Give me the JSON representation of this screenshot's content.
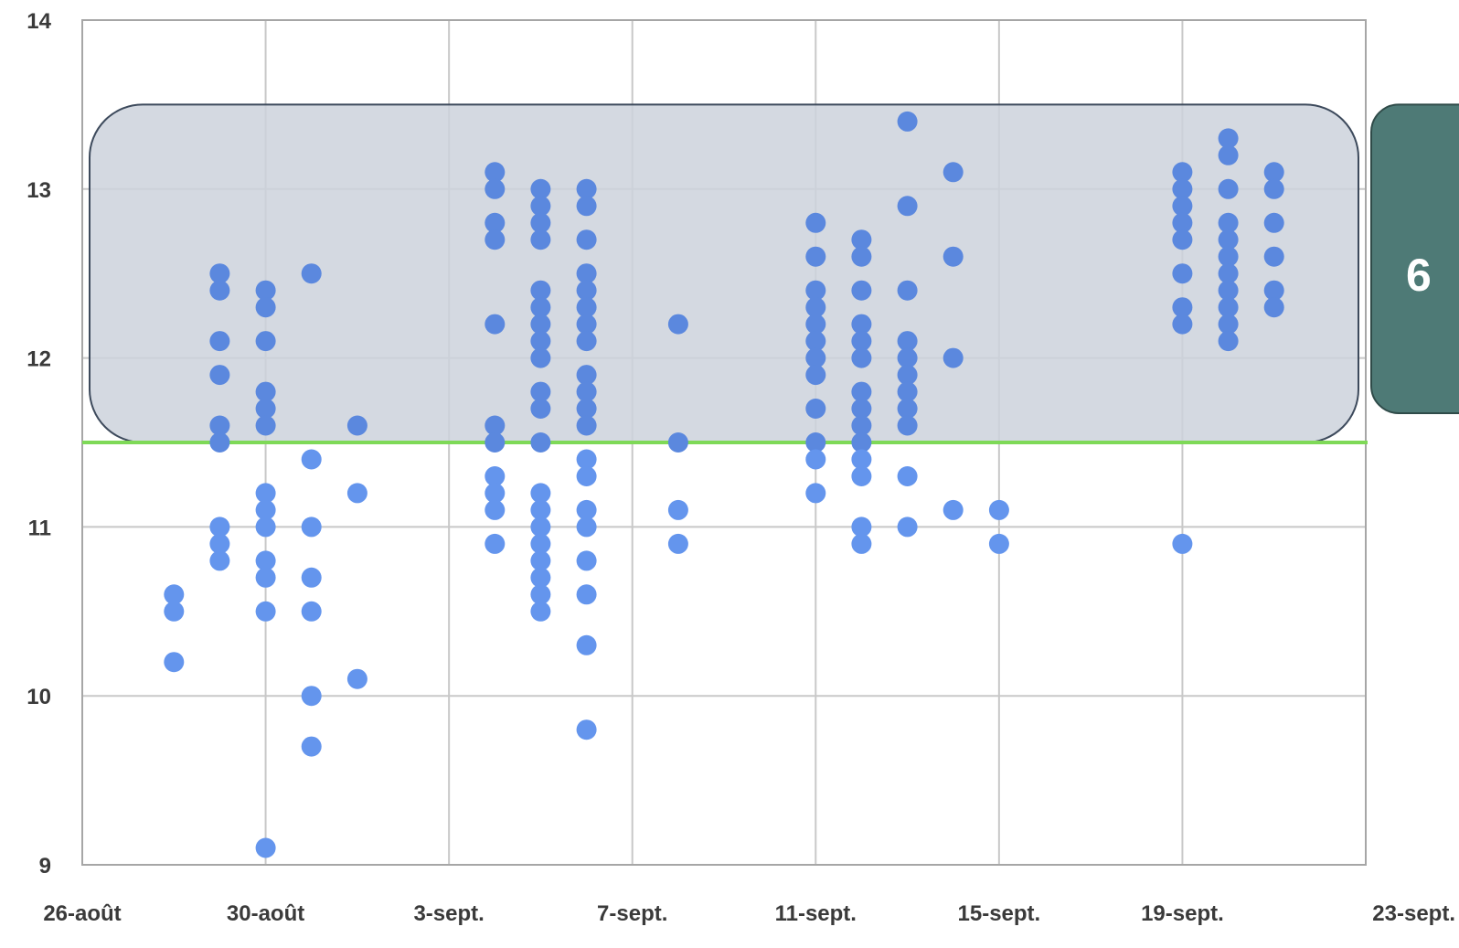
{
  "chart_data": {
    "type": "scatter",
    "title": "",
    "xlabel": "",
    "ylabel": "",
    "x_ticks": [
      "26-août",
      "30-août",
      "3-sept.",
      "7-sept.",
      "11-sept.",
      "15-sept.",
      "19-sept.",
      "23-sept."
    ],
    "x_range": [
      "2019-08-26",
      "2019-09-23"
    ],
    "ylim": [
      9,
      14
    ],
    "y_ticks": [
      9,
      10,
      11,
      12,
      13,
      14
    ],
    "grid": true,
    "threshold": {
      "value": 11.5,
      "color": "#7ed957"
    },
    "highlight_band": {
      "y_from": 11.5,
      "y_to": 13.5,
      "x_from": "2019-08-26",
      "x_to": "2019-09-23"
    },
    "callout_label": "6",
    "colors": {
      "point": "#6495ed",
      "point_in_band": "#5b88de",
      "band_fill": "#cdd2dc",
      "band_stroke": "#3d4a5c",
      "callout_fill": "#4e7a76",
      "grid": "#c8c8c8",
      "axis": "#a6a6a6"
    },
    "series": [
      {
        "points": [
          [
            "2019-08-28",
            10.6
          ],
          [
            "2019-08-28",
            10.5
          ],
          [
            "2019-08-28",
            10.2
          ],
          [
            "2019-08-29",
            12.5
          ],
          [
            "2019-08-29",
            12.4
          ],
          [
            "2019-08-29",
            12.1
          ],
          [
            "2019-08-29",
            11.9
          ],
          [
            "2019-08-29",
            11.6
          ],
          [
            "2019-08-29",
            11.5
          ],
          [
            "2019-08-29",
            11.0
          ],
          [
            "2019-08-29",
            10.9
          ],
          [
            "2019-08-29",
            10.8
          ],
          [
            "2019-08-30",
            12.4
          ],
          [
            "2019-08-30",
            12.3
          ],
          [
            "2019-08-30",
            12.1
          ],
          [
            "2019-08-30",
            11.8
          ],
          [
            "2019-08-30",
            11.7
          ],
          [
            "2019-08-30",
            11.6
          ],
          [
            "2019-08-30",
            11.2
          ],
          [
            "2019-08-30",
            11.1
          ],
          [
            "2019-08-30",
            11.0
          ],
          [
            "2019-08-30",
            10.8
          ],
          [
            "2019-08-30",
            10.7
          ],
          [
            "2019-08-30",
            10.5
          ],
          [
            "2019-08-30",
            9.1
          ],
          [
            "2019-08-31",
            12.5
          ],
          [
            "2019-08-31",
            11.4
          ],
          [
            "2019-08-31",
            11.0
          ],
          [
            "2019-08-31",
            10.7
          ],
          [
            "2019-08-31",
            10.5
          ],
          [
            "2019-08-31",
            10.0
          ],
          [
            "2019-08-31",
            9.7
          ],
          [
            "2019-09-01",
            11.6
          ],
          [
            "2019-09-01",
            11.2
          ],
          [
            "2019-09-01",
            10.1
          ],
          [
            "2019-09-04",
            13.1
          ],
          [
            "2019-09-04",
            13.0
          ],
          [
            "2019-09-04",
            12.8
          ],
          [
            "2019-09-04",
            12.7
          ],
          [
            "2019-09-04",
            12.2
          ],
          [
            "2019-09-04",
            11.6
          ],
          [
            "2019-09-04",
            11.5
          ],
          [
            "2019-09-04",
            11.3
          ],
          [
            "2019-09-04",
            11.2
          ],
          [
            "2019-09-04",
            11.1
          ],
          [
            "2019-09-04",
            10.9
          ],
          [
            "2019-09-05",
            13.0
          ],
          [
            "2019-09-05",
            12.9
          ],
          [
            "2019-09-05",
            12.8
          ],
          [
            "2019-09-05",
            12.7
          ],
          [
            "2019-09-05",
            12.4
          ],
          [
            "2019-09-05",
            12.3
          ],
          [
            "2019-09-05",
            12.2
          ],
          [
            "2019-09-05",
            12.1
          ],
          [
            "2019-09-05",
            12.0
          ],
          [
            "2019-09-05",
            11.8
          ],
          [
            "2019-09-05",
            11.7
          ],
          [
            "2019-09-05",
            11.5
          ],
          [
            "2019-09-05",
            11.2
          ],
          [
            "2019-09-05",
            11.1
          ],
          [
            "2019-09-05",
            11.0
          ],
          [
            "2019-09-05",
            10.9
          ],
          [
            "2019-09-05",
            10.8
          ],
          [
            "2019-09-05",
            10.7
          ],
          [
            "2019-09-05",
            10.6
          ],
          [
            "2019-09-05",
            10.5
          ],
          [
            "2019-09-06",
            13.0
          ],
          [
            "2019-09-06",
            12.9
          ],
          [
            "2019-09-06",
            12.7
          ],
          [
            "2019-09-06",
            12.5
          ],
          [
            "2019-09-06",
            12.4
          ],
          [
            "2019-09-06",
            12.3
          ],
          [
            "2019-09-06",
            12.2
          ],
          [
            "2019-09-06",
            12.1
          ],
          [
            "2019-09-06",
            11.9
          ],
          [
            "2019-09-06",
            11.8
          ],
          [
            "2019-09-06",
            11.7
          ],
          [
            "2019-09-06",
            11.6
          ],
          [
            "2019-09-06",
            11.4
          ],
          [
            "2019-09-06",
            11.3
          ],
          [
            "2019-09-06",
            11.1
          ],
          [
            "2019-09-06",
            11.0
          ],
          [
            "2019-09-06",
            10.8
          ],
          [
            "2019-09-06",
            10.6
          ],
          [
            "2019-09-06",
            10.3
          ],
          [
            "2019-09-06",
            9.8
          ],
          [
            "2019-09-08",
            12.2
          ],
          [
            "2019-09-08",
            11.5
          ],
          [
            "2019-09-08",
            11.1
          ],
          [
            "2019-09-08",
            10.9
          ],
          [
            "2019-09-11",
            12.8
          ],
          [
            "2019-09-11",
            12.6
          ],
          [
            "2019-09-11",
            12.4
          ],
          [
            "2019-09-11",
            12.3
          ],
          [
            "2019-09-11",
            12.2
          ],
          [
            "2019-09-11",
            12.1
          ],
          [
            "2019-09-11",
            12.0
          ],
          [
            "2019-09-11",
            11.9
          ],
          [
            "2019-09-11",
            11.7
          ],
          [
            "2019-09-11",
            11.5
          ],
          [
            "2019-09-11",
            11.4
          ],
          [
            "2019-09-11",
            11.2
          ],
          [
            "2019-09-12",
            12.7
          ],
          [
            "2019-09-12",
            12.6
          ],
          [
            "2019-09-12",
            12.4
          ],
          [
            "2019-09-12",
            12.2
          ],
          [
            "2019-09-12",
            12.1
          ],
          [
            "2019-09-12",
            12.0
          ],
          [
            "2019-09-12",
            11.8
          ],
          [
            "2019-09-12",
            11.7
          ],
          [
            "2019-09-12",
            11.6
          ],
          [
            "2019-09-12",
            11.5
          ],
          [
            "2019-09-12",
            11.4
          ],
          [
            "2019-09-12",
            11.3
          ],
          [
            "2019-09-12",
            11.0
          ],
          [
            "2019-09-12",
            10.9
          ],
          [
            "2019-09-13",
            13.4
          ],
          [
            "2019-09-13",
            12.9
          ],
          [
            "2019-09-13",
            12.4
          ],
          [
            "2019-09-13",
            12.1
          ],
          [
            "2019-09-13",
            12.0
          ],
          [
            "2019-09-13",
            11.9
          ],
          [
            "2019-09-13",
            11.8
          ],
          [
            "2019-09-13",
            11.7
          ],
          [
            "2019-09-13",
            11.6
          ],
          [
            "2019-09-13",
            11.3
          ],
          [
            "2019-09-13",
            11.0
          ],
          [
            "2019-09-14",
            13.1
          ],
          [
            "2019-09-14",
            12.6
          ],
          [
            "2019-09-14",
            12.0
          ],
          [
            "2019-09-14",
            11.1
          ],
          [
            "2019-09-15",
            11.1
          ],
          [
            "2019-09-15",
            10.9
          ],
          [
            "2019-09-19",
            13.1
          ],
          [
            "2019-09-19",
            13.0
          ],
          [
            "2019-09-19",
            12.9
          ],
          [
            "2019-09-19",
            12.8
          ],
          [
            "2019-09-19",
            12.7
          ],
          [
            "2019-09-19",
            12.5
          ],
          [
            "2019-09-19",
            12.3
          ],
          [
            "2019-09-19",
            12.2
          ],
          [
            "2019-09-19",
            10.9
          ],
          [
            "2019-09-20",
            13.3
          ],
          [
            "2019-09-20",
            13.2
          ],
          [
            "2019-09-20",
            13.0
          ],
          [
            "2019-09-20",
            12.8
          ],
          [
            "2019-09-20",
            12.7
          ],
          [
            "2019-09-20",
            12.6
          ],
          [
            "2019-09-20",
            12.5
          ],
          [
            "2019-09-20",
            12.4
          ],
          [
            "2019-09-20",
            12.3
          ],
          [
            "2019-09-20",
            12.2
          ],
          [
            "2019-09-20",
            12.1
          ],
          [
            "2019-09-21",
            13.1
          ],
          [
            "2019-09-21",
            13.0
          ],
          [
            "2019-09-21",
            12.8
          ],
          [
            "2019-09-21",
            12.6
          ],
          [
            "2019-09-21",
            12.4
          ],
          [
            "2019-09-21",
            12.3
          ]
        ]
      }
    ]
  }
}
